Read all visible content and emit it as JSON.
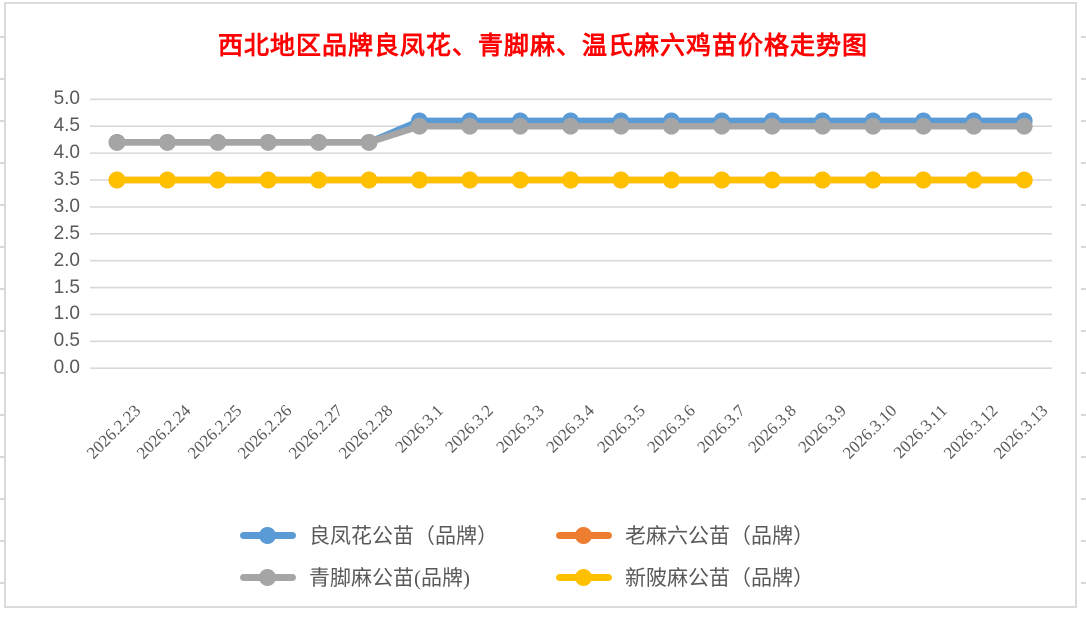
{
  "title": {
    "text": "西北地区品牌良凤花、青脚麻、温氏麻六鸡苗价格走势图",
    "color": "#FF0000"
  },
  "chart_data": {
    "type": "line",
    "title": "西北地区品牌良凤花、青脚麻、温氏麻六鸡苗价格走势图",
    "x": [
      "2026.2.23",
      "2026.2.24",
      "2026.2.25",
      "2026.2.26",
      "2026.2.27",
      "2026.2.28",
      "2026.3.1",
      "2026.3.2",
      "2026.3.3",
      "2026.3.4",
      "2026.3.5",
      "2026.3.6",
      "2026.3.7",
      "2026.3.8",
      "2026.3.9",
      "2026.3.10",
      "2026.3.11",
      "2026.3.12",
      "2026.3.13"
    ],
    "series": [
      {
        "name": "良凤花公苗（品牌）",
        "color": "#5B9BD5",
        "values": [
          4.2,
          4.2,
          4.2,
          4.2,
          4.2,
          4.2,
          4.6,
          4.6,
          4.6,
          4.6,
          4.6,
          4.6,
          4.6,
          4.6,
          4.6,
          4.6,
          4.6,
          4.6,
          4.6
        ]
      },
      {
        "name": "老麻六公苗（品牌）",
        "color": "#ED7D31",
        "values": [
          3.5,
          3.5,
          3.5,
          3.5,
          3.5,
          3.5,
          3.5,
          3.5,
          3.5,
          3.5,
          3.5,
          3.5,
          3.5,
          3.5,
          3.5,
          3.5,
          3.5,
          3.5,
          3.5
        ],
        "note": "not visible in plot; coincides with and is drawn beneath 新陂麻公苗（品牌）"
      },
      {
        "name": "青脚麻公苗(品牌)",
        "color": "#A5A5A5",
        "values": [
          4.2,
          4.2,
          4.2,
          4.2,
          4.2,
          4.2,
          4.5,
          4.5,
          4.5,
          4.5,
          4.5,
          4.5,
          4.5,
          4.5,
          4.5,
          4.5,
          4.5,
          4.5,
          4.5
        ]
      },
      {
        "name": "新陂麻公苗（品牌）",
        "color": "#FFC000",
        "values": [
          3.5,
          3.5,
          3.5,
          3.5,
          3.5,
          3.5,
          3.5,
          3.5,
          3.5,
          3.5,
          3.5,
          3.5,
          3.5,
          3.5,
          3.5,
          3.5,
          3.5,
          3.5,
          3.5
        ]
      }
    ],
    "ylim": [
      0.0,
      5.0
    ],
    "ytick_step": 0.5,
    "ytick_labels": [
      "5.0",
      "4.5",
      "4.0",
      "3.5",
      "3.0",
      "2.5",
      "2.0",
      "1.5",
      "1.0",
      "0.5",
      "0.0"
    ],
    "xlabel": "",
    "ylabel": "",
    "grid": true,
    "gridline_color": "#D9D9D9",
    "axis_label_color": "#595959",
    "legend_position": "bottom",
    "legend_columns": 2,
    "marker": "circle"
  }
}
